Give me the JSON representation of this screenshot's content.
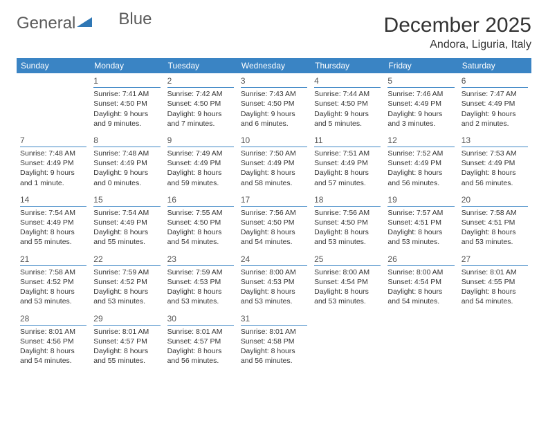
{
  "brand": {
    "name_a": "General",
    "name_b": "Blue"
  },
  "title": "December 2025",
  "location": "Andora, Liguria, Italy",
  "colors": {
    "header_bg": "#3a84c4",
    "header_text": "#ffffff",
    "page_bg": "#ffffff",
    "text": "#333333",
    "daynum_border": "#3a84c4",
    "logo_text": "#5a5a5a",
    "logo_icon": "#2f77b5"
  },
  "typography": {
    "title_fontsize": 30,
    "location_fontsize": 16,
    "header_fontsize": 12,
    "cell_fontsize": 10.5,
    "logo_fontsize": 24
  },
  "day_headers": [
    "Sunday",
    "Monday",
    "Tuesday",
    "Wednesday",
    "Thursday",
    "Friday",
    "Saturday"
  ],
  "weeks": [
    [
      {
        "day": "",
        "sunrise": "",
        "sunset": "",
        "daylight": ""
      },
      {
        "day": "1",
        "sunrise": "Sunrise: 7:41 AM",
        "sunset": "Sunset: 4:50 PM",
        "daylight": "Daylight: 9 hours and 9 minutes."
      },
      {
        "day": "2",
        "sunrise": "Sunrise: 7:42 AM",
        "sunset": "Sunset: 4:50 PM",
        "daylight": "Daylight: 9 hours and 7 minutes."
      },
      {
        "day": "3",
        "sunrise": "Sunrise: 7:43 AM",
        "sunset": "Sunset: 4:50 PM",
        "daylight": "Daylight: 9 hours and 6 minutes."
      },
      {
        "day": "4",
        "sunrise": "Sunrise: 7:44 AM",
        "sunset": "Sunset: 4:50 PM",
        "daylight": "Daylight: 9 hours and 5 minutes."
      },
      {
        "day": "5",
        "sunrise": "Sunrise: 7:46 AM",
        "sunset": "Sunset: 4:49 PM",
        "daylight": "Daylight: 9 hours and 3 minutes."
      },
      {
        "day": "6",
        "sunrise": "Sunrise: 7:47 AM",
        "sunset": "Sunset: 4:49 PM",
        "daylight": "Daylight: 9 hours and 2 minutes."
      }
    ],
    [
      {
        "day": "7",
        "sunrise": "Sunrise: 7:48 AM",
        "sunset": "Sunset: 4:49 PM",
        "daylight": "Daylight: 9 hours and 1 minute."
      },
      {
        "day": "8",
        "sunrise": "Sunrise: 7:48 AM",
        "sunset": "Sunset: 4:49 PM",
        "daylight": "Daylight: 9 hours and 0 minutes."
      },
      {
        "day": "9",
        "sunrise": "Sunrise: 7:49 AM",
        "sunset": "Sunset: 4:49 PM",
        "daylight": "Daylight: 8 hours and 59 minutes."
      },
      {
        "day": "10",
        "sunrise": "Sunrise: 7:50 AM",
        "sunset": "Sunset: 4:49 PM",
        "daylight": "Daylight: 8 hours and 58 minutes."
      },
      {
        "day": "11",
        "sunrise": "Sunrise: 7:51 AM",
        "sunset": "Sunset: 4:49 PM",
        "daylight": "Daylight: 8 hours and 57 minutes."
      },
      {
        "day": "12",
        "sunrise": "Sunrise: 7:52 AM",
        "sunset": "Sunset: 4:49 PM",
        "daylight": "Daylight: 8 hours and 56 minutes."
      },
      {
        "day": "13",
        "sunrise": "Sunrise: 7:53 AM",
        "sunset": "Sunset: 4:49 PM",
        "daylight": "Daylight: 8 hours and 56 minutes."
      }
    ],
    [
      {
        "day": "14",
        "sunrise": "Sunrise: 7:54 AM",
        "sunset": "Sunset: 4:49 PM",
        "daylight": "Daylight: 8 hours and 55 minutes."
      },
      {
        "day": "15",
        "sunrise": "Sunrise: 7:54 AM",
        "sunset": "Sunset: 4:49 PM",
        "daylight": "Daylight: 8 hours and 55 minutes."
      },
      {
        "day": "16",
        "sunrise": "Sunrise: 7:55 AM",
        "sunset": "Sunset: 4:50 PM",
        "daylight": "Daylight: 8 hours and 54 minutes."
      },
      {
        "day": "17",
        "sunrise": "Sunrise: 7:56 AM",
        "sunset": "Sunset: 4:50 PM",
        "daylight": "Daylight: 8 hours and 54 minutes."
      },
      {
        "day": "18",
        "sunrise": "Sunrise: 7:56 AM",
        "sunset": "Sunset: 4:50 PM",
        "daylight": "Daylight: 8 hours and 53 minutes."
      },
      {
        "day": "19",
        "sunrise": "Sunrise: 7:57 AM",
        "sunset": "Sunset: 4:51 PM",
        "daylight": "Daylight: 8 hours and 53 minutes."
      },
      {
        "day": "20",
        "sunrise": "Sunrise: 7:58 AM",
        "sunset": "Sunset: 4:51 PM",
        "daylight": "Daylight: 8 hours and 53 minutes."
      }
    ],
    [
      {
        "day": "21",
        "sunrise": "Sunrise: 7:58 AM",
        "sunset": "Sunset: 4:52 PM",
        "daylight": "Daylight: 8 hours and 53 minutes."
      },
      {
        "day": "22",
        "sunrise": "Sunrise: 7:59 AM",
        "sunset": "Sunset: 4:52 PM",
        "daylight": "Daylight: 8 hours and 53 minutes."
      },
      {
        "day": "23",
        "sunrise": "Sunrise: 7:59 AM",
        "sunset": "Sunset: 4:53 PM",
        "daylight": "Daylight: 8 hours and 53 minutes."
      },
      {
        "day": "24",
        "sunrise": "Sunrise: 8:00 AM",
        "sunset": "Sunset: 4:53 PM",
        "daylight": "Daylight: 8 hours and 53 minutes."
      },
      {
        "day": "25",
        "sunrise": "Sunrise: 8:00 AM",
        "sunset": "Sunset: 4:54 PM",
        "daylight": "Daylight: 8 hours and 53 minutes."
      },
      {
        "day": "26",
        "sunrise": "Sunrise: 8:00 AM",
        "sunset": "Sunset: 4:54 PM",
        "daylight": "Daylight: 8 hours and 54 minutes."
      },
      {
        "day": "27",
        "sunrise": "Sunrise: 8:01 AM",
        "sunset": "Sunset: 4:55 PM",
        "daylight": "Daylight: 8 hours and 54 minutes."
      }
    ],
    [
      {
        "day": "28",
        "sunrise": "Sunrise: 8:01 AM",
        "sunset": "Sunset: 4:56 PM",
        "daylight": "Daylight: 8 hours and 54 minutes."
      },
      {
        "day": "29",
        "sunrise": "Sunrise: 8:01 AM",
        "sunset": "Sunset: 4:57 PM",
        "daylight": "Daylight: 8 hours and 55 minutes."
      },
      {
        "day": "30",
        "sunrise": "Sunrise: 8:01 AM",
        "sunset": "Sunset: 4:57 PM",
        "daylight": "Daylight: 8 hours and 56 minutes."
      },
      {
        "day": "31",
        "sunrise": "Sunrise: 8:01 AM",
        "sunset": "Sunset: 4:58 PM",
        "daylight": "Daylight: 8 hours and 56 minutes."
      },
      {
        "day": "",
        "sunrise": "",
        "sunset": "",
        "daylight": ""
      },
      {
        "day": "",
        "sunrise": "",
        "sunset": "",
        "daylight": ""
      },
      {
        "day": "",
        "sunrise": "",
        "sunset": "",
        "daylight": ""
      }
    ]
  ]
}
